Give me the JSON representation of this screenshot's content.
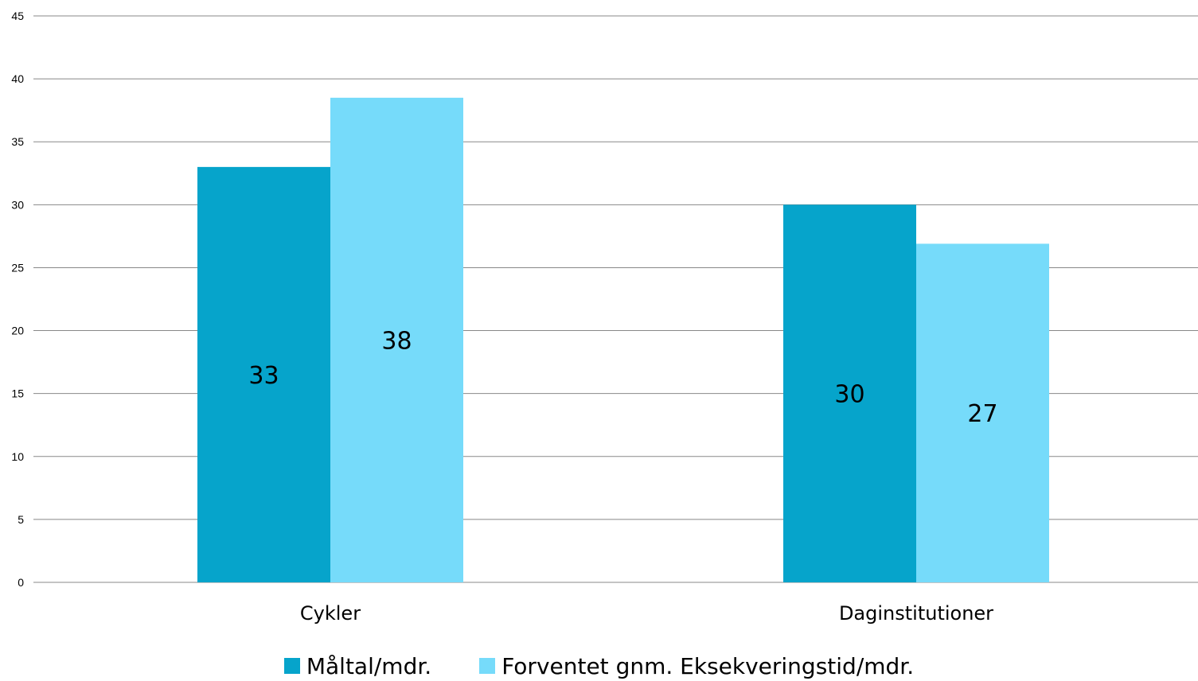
{
  "chart_data": {
    "type": "bar",
    "categories": [
      "Cykler",
      "Daginstitutioner"
    ],
    "series": [
      {
        "name": "Måltal/mdr.",
        "values": [
          33,
          30
        ],
        "labels": [
          "33",
          "30"
        ],
        "color": "#06A4CB"
      },
      {
        "name": "Forventet gnm. Eksekveringstid/mdr.",
        "values": [
          38.5,
          26.9
        ],
        "labels": [
          "38",
          "27"
        ],
        "color": "#76DBFA"
      }
    ],
    "ylim": [
      0,
      45
    ],
    "y_ticks": [
      "0",
      "5",
      "10",
      "15",
      "20",
      "25",
      "30",
      "35",
      "40",
      "45"
    ],
    "grid": true,
    "gridline_color": "#888888",
    "legend_position": "bottom",
    "title": "",
    "xlabel": "",
    "ylabel": ""
  }
}
